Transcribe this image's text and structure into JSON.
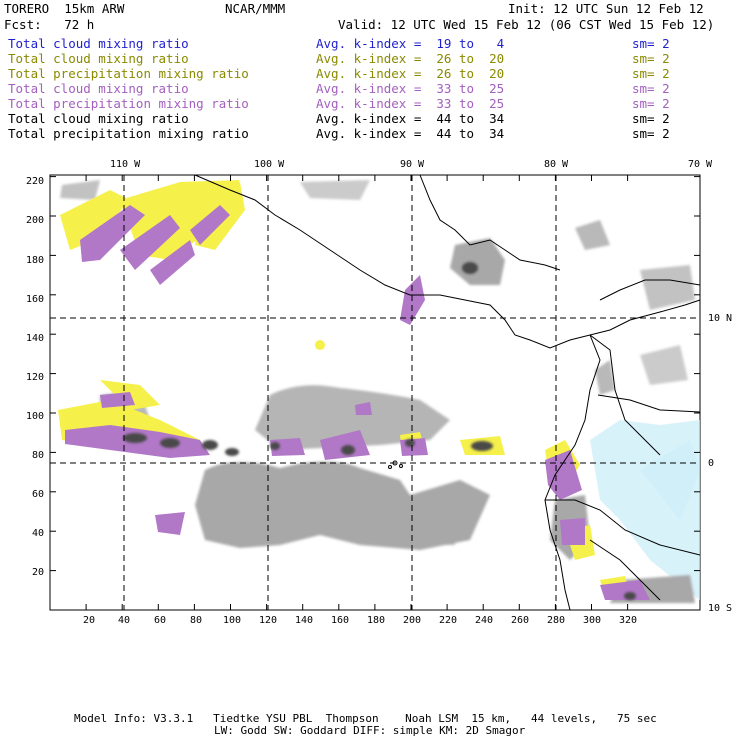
{
  "header": {
    "model": "TORERO  15km ARW",
    "center": "NCAR/MMM",
    "init": "Init: 12 UTC Sun 12 Feb 12",
    "fcst": "Fcst:   72 h",
    "valid": "Valid: 12 UTC Wed 15 Feb 12 (06 CST Wed 15 Feb 12)"
  },
  "fields": [
    {
      "name": "Total cloud mixing ratio",
      "kindex": "Avg. k-index =  19 to   4",
      "sm": "sm= 2",
      "color": "#1f1fd0"
    },
    {
      "name": "Total cloud mixing ratio",
      "kindex": "Avg. k-index =  26 to  20",
      "sm": "sm= 2",
      "color": "#8a8a00"
    },
    {
      "name": "Total precipitation mixing ratio",
      "kindex": "Avg. k-index =  26 to  20",
      "sm": "sm= 2",
      "color": "#8a8a00"
    },
    {
      "name": "Total cloud mixing ratio",
      "kindex": "Avg. k-index =  33 to  25",
      "sm": "sm= 2",
      "color": "#a45fbf"
    },
    {
      "name": "Total precipitation mixing ratio",
      "kindex": "Avg. k-index =  33 to  25",
      "sm": "sm= 2",
      "color": "#a45fbf"
    },
    {
      "name": "Total cloud mixing ratio",
      "kindex": "Avg. k-index =  44 to  34",
      "sm": "sm= 2",
      "color": "#000000"
    },
    {
      "name": "Total precipitation mixing ratio",
      "kindex": "Avg. k-index =  44 to  34",
      "sm": "sm= 2",
      "color": "#000000"
    }
  ],
  "axes": {
    "lon_labels": [
      "110 W",
      "100 W",
      "90 W",
      "80 W",
      "70 W"
    ],
    "lat_labels": [
      "10 N",
      "0",
      "10 S"
    ],
    "x_ticks": [
      "20",
      "40",
      "60",
      "80",
      "100",
      "120",
      "140",
      "160",
      "180",
      "200",
      "220",
      "240",
      "260",
      "280",
      "300",
      "320"
    ],
    "y_ticks": [
      "220",
      "200",
      "180",
      "160",
      "140",
      "120",
      "100",
      "80",
      "60",
      "40",
      "20"
    ]
  },
  "footer": {
    "line1": "Model Info: V3.3.1   Tiedtke YSU PBL  Thompson    Noah LSM  15 km,   44 levels,   75 sec",
    "line2": "LW: Godd SW: Goddard DIFF: simple KM: 2D Smagor"
  },
  "colors": {
    "yellow": "#f5f04a",
    "magenta": "#b278c8",
    "gray": "#a8a8a8",
    "darkgray": "#6a6a6a",
    "lightblue": "#c8ecf8"
  }
}
